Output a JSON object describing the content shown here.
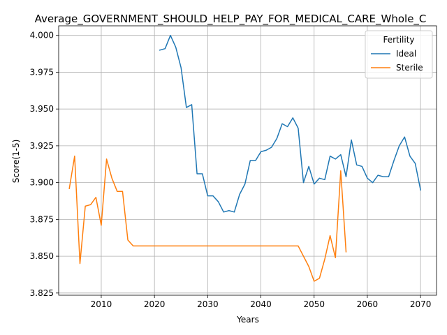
{
  "chart_data": {
    "type": "line",
    "title": "Average_GOVERNMENT_SHOULD_HELP_PAY_FOR_MEDICAL_CARE_Whole_C",
    "xlabel": "Years",
    "ylabel": "Score(1-5)",
    "xlim": [
      2002,
      2073
    ],
    "ylim": [
      3.8235,
      4.0065
    ],
    "xticks": [
      2010,
      2020,
      2030,
      2040,
      2050,
      2060,
      2070
    ],
    "yticks": [
      3.825,
      3.85,
      3.875,
      3.9,
      3.925,
      3.95,
      3.975,
      4.0
    ],
    "grid": true,
    "legend": {
      "title": "Fertility",
      "position": "top-right"
    },
    "series": [
      {
        "name": "Ideal",
        "color": "#1f77b4",
        "x": [
          2021,
          2022,
          2023,
          2024,
          2025,
          2026,
          2027,
          2028,
          2029,
          2030,
          2031,
          2032,
          2033,
          2034,
          2035,
          2036,
          2037,
          2038,
          2039,
          2040,
          2041,
          2042,
          2043,
          2044,
          2045,
          2046,
          2047,
          2048,
          2049,
          2050,
          2051,
          2052,
          2053,
          2054,
          2055,
          2056,
          2057,
          2058,
          2059,
          2060,
          2061,
          2062,
          2063,
          2064,
          2065,
          2066,
          2067,
          2068,
          2069,
          2070
        ],
        "y": [
          3.99,
          3.991,
          4.0,
          3.992,
          3.978,
          3.951,
          3.953,
          3.906,
          3.906,
          3.891,
          3.891,
          3.887,
          3.88,
          3.881,
          3.88,
          3.892,
          3.899,
          3.915,
          3.915,
          3.921,
          3.922,
          3.924,
          3.93,
          3.94,
          3.938,
          3.944,
          3.937,
          3.9,
          3.911,
          3.899,
          3.903,
          3.902,
          3.918,
          3.916,
          3.919,
          3.904,
          3.929,
          3.912,
          3.911,
          3.903,
          3.9,
          3.905,
          3.904,
          3.904,
          3.915,
          3.925,
          3.931,
          3.918,
          3.913,
          3.895
        ]
      },
      {
        "name": "Sterile",
        "color": "#ff7f0e",
        "x": [
          2004,
          2005,
          2006,
          2007,
          2008,
          2009,
          2010,
          2011,
          2012,
          2013,
          2014,
          2015,
          2016,
          2017,
          2018,
          2019,
          2020,
          2021,
          2022,
          2023,
          2024,
          2025,
          2026,
          2027,
          2028,
          2029,
          2030,
          2031,
          2032,
          2033,
          2034,
          2035,
          2036,
          2037,
          2038,
          2039,
          2040,
          2041,
          2042,
          2043,
          2044,
          2045,
          2046,
          2047,
          2048,
          2049,
          2050,
          2051,
          2052,
          2053,
          2054,
          2055,
          2056
        ],
        "y": [
          3.896,
          3.918,
          3.845,
          3.884,
          3.885,
          3.89,
          3.871,
          3.916,
          3.903,
          3.894,
          3.894,
          3.861,
          3.857,
          3.857,
          3.857,
          3.857,
          3.857,
          3.857,
          3.857,
          3.857,
          3.857,
          3.857,
          3.857,
          3.857,
          3.857,
          3.857,
          3.857,
          3.857,
          3.857,
          3.857,
          3.857,
          3.857,
          3.857,
          3.857,
          3.857,
          3.857,
          3.857,
          3.857,
          3.857,
          3.857,
          3.857,
          3.857,
          3.857,
          3.857,
          3.85,
          3.843,
          3.833,
          3.835,
          3.848,
          3.864,
          3.849,
          3.908,
          3.853
        ]
      }
    ]
  }
}
